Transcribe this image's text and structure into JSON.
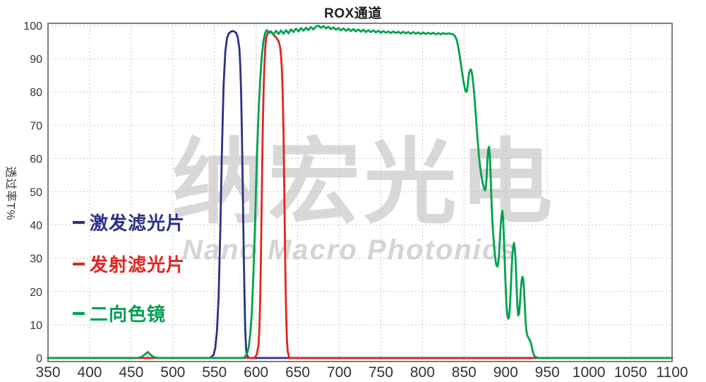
{
  "watermark": {
    "cn": "纳宏光电",
    "en": "Nano Macro Photonics"
  },
  "chart_data": {
    "type": "line",
    "title": "ROX通道",
    "y_axis_label": "透过率T%",
    "x_range": [
      350,
      1100
    ],
    "y_range": [
      0,
      100
    ],
    "x_ticks": [
      350,
      400,
      450,
      500,
      550,
      600,
      650,
      700,
      750,
      800,
      850,
      900,
      950,
      1000,
      1050,
      1100
    ],
    "y_ticks": [
      0,
      10,
      20,
      30,
      40,
      50,
      60,
      70,
      80,
      90,
      100
    ],
    "grid": "dotted",
    "legend_position": "middle-left",
    "series": [
      {
        "name": "激发滤光片",
        "color": "#2b3088",
        "points": [
          [
            350,
            0
          ],
          [
            545,
            0
          ],
          [
            549,
            1
          ],
          [
            551,
            3
          ],
          [
            553,
            8
          ],
          [
            555,
            18
          ],
          [
            557,
            38
          ],
          [
            559,
            62
          ],
          [
            561,
            82
          ],
          [
            563,
            92
          ],
          [
            565,
            96
          ],
          [
            567,
            97.5
          ],
          [
            570,
            98.2
          ],
          [
            573,
            98.3
          ],
          [
            576,
            97.8
          ],
          [
            578,
            96.5
          ],
          [
            580,
            93
          ],
          [
            581,
            88
          ],
          [
            582,
            80
          ],
          [
            583,
            68
          ],
          [
            584,
            52
          ],
          [
            585,
            35
          ],
          [
            586,
            20
          ],
          [
            587,
            9
          ],
          [
            588,
            3
          ],
          [
            589,
            1
          ],
          [
            591,
            0
          ],
          [
            1100,
            0
          ]
        ]
      },
      {
        "name": "发射滤光片",
        "color": "#e2241d",
        "points": [
          [
            350,
            0
          ],
          [
            598,
            0
          ],
          [
            601,
            1
          ],
          [
            603,
            4
          ],
          [
            604,
            9
          ],
          [
            605,
            18
          ],
          [
            606,
            32
          ],
          [
            607,
            50
          ],
          [
            608,
            68
          ],
          [
            609,
            80
          ],
          [
            610,
            88
          ],
          [
            611,
            93
          ],
          [
            612,
            96
          ],
          [
            614,
            97.8
          ],
          [
            616,
            98.2
          ],
          [
            618,
            98
          ],
          [
            621,
            97.2
          ],
          [
            624,
            96.4
          ],
          [
            627,
            95.3
          ],
          [
            629,
            93.5
          ],
          [
            630,
            91
          ],
          [
            631,
            87
          ],
          [
            632,
            80
          ],
          [
            633,
            68
          ],
          [
            634,
            50
          ],
          [
            635,
            30
          ],
          [
            636,
            15
          ],
          [
            637,
            6
          ],
          [
            638,
            2
          ],
          [
            640,
            0
          ],
          [
            1100,
            0
          ]
        ]
      },
      {
        "name": "二向色镜",
        "color": "#00a14e",
        "points": [
          [
            350,
            0
          ],
          [
            458,
            0
          ],
          [
            463,
            0.4
          ],
          [
            467,
            1.2
          ],
          [
            470,
            1.8
          ],
          [
            473,
            1
          ],
          [
            477,
            0.3
          ],
          [
            482,
            0
          ],
          [
            584,
            0
          ],
          [
            587,
            0.4
          ],
          [
            589,
            1.2
          ],
          [
            591,
            3
          ],
          [
            593,
            7
          ],
          [
            595,
            14
          ],
          [
            597,
            26
          ],
          [
            599,
            42
          ],
          [
            601,
            60
          ],
          [
            603,
            74
          ],
          [
            605,
            84
          ],
          [
            607,
            91
          ],
          [
            609,
            95.5
          ],
          [
            611,
            97.8
          ],
          [
            613,
            98.6
          ],
          [
            615,
            97.6
          ],
          [
            618,
            98.2
          ],
          [
            621,
            97.3
          ],
          [
            624,
            98.4
          ],
          [
            627,
            97.4
          ],
          [
            630,
            98.5
          ],
          [
            633,
            97.5
          ],
          [
            636,
            98.6
          ],
          [
            639,
            97.6
          ],
          [
            642,
            98.8
          ],
          [
            645,
            98
          ],
          [
            648,
            99
          ],
          [
            651,
            98.2
          ],
          [
            654,
            99.2
          ],
          [
            657,
            98.4
          ],
          [
            660,
            99.3
          ],
          [
            663,
            98.6
          ],
          [
            666,
            99.5
          ],
          [
            669,
            98.8
          ],
          [
            672,
            99.7
          ],
          [
            675,
            99.9
          ],
          [
            678,
            99.3
          ],
          [
            681,
            99.8
          ],
          [
            684,
            99.1
          ],
          [
            687,
            99.6
          ],
          [
            690,
            98.9
          ],
          [
            693,
            99.4
          ],
          [
            696,
            98.7
          ],
          [
            699,
            99.2
          ],
          [
            702,
            98.5
          ],
          [
            705,
            99.1
          ],
          [
            708,
            98.4
          ],
          [
            711,
            99
          ],
          [
            714,
            98.3
          ],
          [
            717,
            98.9
          ],
          [
            720,
            98.2
          ],
          [
            723,
            98.8
          ],
          [
            726,
            98.1
          ],
          [
            729,
            98.7
          ],
          [
            732,
            98
          ],
          [
            735,
            98.6
          ],
          [
            738,
            98
          ],
          [
            741,
            98.5
          ],
          [
            744,
            97.9
          ],
          [
            747,
            98.4
          ],
          [
            750,
            97.8
          ],
          [
            753,
            98.3
          ],
          [
            756,
            97.8
          ],
          [
            759,
            98.2
          ],
          [
            762,
            97.7
          ],
          [
            765,
            98.2
          ],
          [
            768,
            97.7
          ],
          [
            771,
            98.1
          ],
          [
            774,
            97.6
          ],
          [
            777,
            98.1
          ],
          [
            780,
            97.6
          ],
          [
            783,
            98
          ],
          [
            786,
            97.5
          ],
          [
            789,
            98
          ],
          [
            792,
            97.5
          ],
          [
            795,
            97.9
          ],
          [
            798,
            97.4
          ],
          [
            801,
            97.9
          ],
          [
            804,
            97.4
          ],
          [
            807,
            97.8
          ],
          [
            810,
            97.4
          ],
          [
            813,
            97.8
          ],
          [
            816,
            97.3
          ],
          [
            819,
            97.7
          ],
          [
            822,
            97.3
          ],
          [
            825,
            97.7
          ],
          [
            828,
            97.4
          ],
          [
            831,
            97.6
          ],
          [
            834,
            97.5
          ],
          [
            837,
            97.3
          ],
          [
            839,
            96.8
          ],
          [
            841,
            95.8
          ],
          [
            843,
            93.5
          ],
          [
            845,
            90.5
          ],
          [
            847,
            87
          ],
          [
            849,
            83.5
          ],
          [
            851,
            81
          ],
          [
            852,
            80.2
          ],
          [
            853,
            80
          ],
          [
            854,
            81
          ],
          [
            855,
            83.5
          ],
          [
            856,
            85.5
          ],
          [
            857,
            86.5
          ],
          [
            858,
            86.8
          ],
          [
            859,
            86.3
          ],
          [
            860,
            84.8
          ],
          [
            862,
            80
          ],
          [
            864,
            73.5
          ],
          [
            866,
            66.5
          ],
          [
            868,
            60.5
          ],
          [
            870,
            56
          ],
          [
            872,
            53
          ],
          [
            874,
            51
          ],
          [
            875,
            50.4
          ],
          [
            876,
            51
          ],
          [
            877,
            54
          ],
          [
            878,
            59
          ],
          [
            879,
            62.5
          ],
          [
            880,
            63.5
          ],
          [
            881,
            61
          ],
          [
            882,
            54
          ],
          [
            883,
            47
          ],
          [
            884,
            41
          ],
          [
            886,
            33.5
          ],
          [
            888,
            29
          ],
          [
            889,
            27.8
          ],
          [
            890,
            27.5
          ],
          [
            891,
            28.5
          ],
          [
            892,
            31
          ],
          [
            893,
            35.5
          ],
          [
            894,
            40
          ],
          [
            895,
            43
          ],
          [
            896,
            44.2
          ],
          [
            897,
            42
          ],
          [
            898,
            35
          ],
          [
            899,
            28
          ],
          [
            900,
            21
          ],
          [
            901,
            16
          ],
          [
            902,
            13
          ],
          [
            903,
            11.8
          ],
          [
            904,
            12.2
          ],
          [
            905,
            15
          ],
          [
            906,
            20
          ],
          [
            907,
            26
          ],
          [
            908,
            31
          ],
          [
            909,
            33.5
          ],
          [
            910,
            34.6
          ],
          [
            911,
            33
          ],
          [
            912,
            29
          ],
          [
            913,
            22
          ],
          [
            914,
            16
          ],
          [
            915,
            12.8
          ],
          [
            916,
            13.2
          ],
          [
            917,
            16
          ],
          [
            918,
            20
          ],
          [
            919,
            23
          ],
          [
            920,
            24.4
          ],
          [
            921,
            24
          ],
          [
            922,
            21
          ],
          [
            923,
            15.5
          ],
          [
            924,
            10.5
          ],
          [
            925,
            8
          ],
          [
            926,
            6.8
          ],
          [
            927,
            6.2
          ],
          [
            928,
            5.8
          ],
          [
            929,
            5.4
          ],
          [
            930,
            4.8
          ],
          [
            931,
            3.8
          ],
          [
            932,
            2.6
          ],
          [
            933,
            1.6
          ],
          [
            934,
            0.9
          ],
          [
            935,
            0.5
          ],
          [
            937,
            0.2
          ],
          [
            939,
            0
          ],
          [
            1100,
            0
          ]
        ]
      }
    ]
  }
}
